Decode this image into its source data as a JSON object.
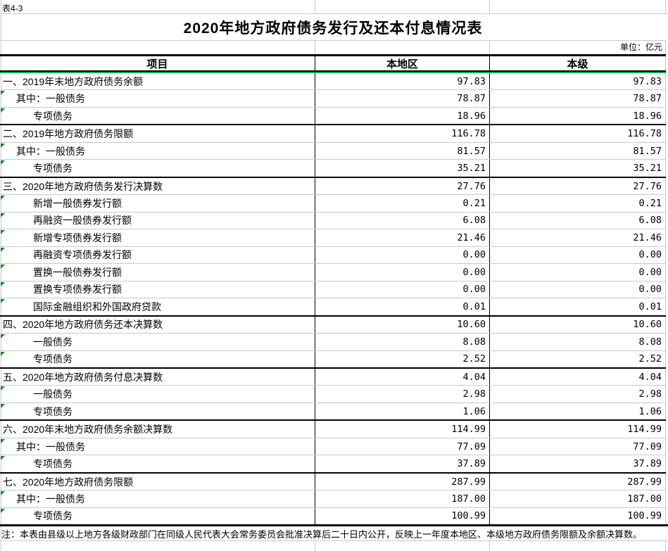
{
  "sheet": {
    "tag": "表4-3",
    "title": "2020年地方政府债务发行及还本付息情况表",
    "unit_label": "单位：亿元",
    "note": "注：本表由县级以上地方各级财政部门在同级人民代表大会常务委员会批准决算后二十日内公开，反映上一年度本地区、本级地方政府债务限额及余额决算数。"
  },
  "table": {
    "columns": [
      "项目",
      "本地区",
      "本级"
    ],
    "rows": [
      {
        "label": "一、2019年末地方政府债务余额",
        "indent": 0,
        "section": true,
        "flag": false,
        "values": [
          "97.83",
          "97.83"
        ]
      },
      {
        "label": "其中：一般债务",
        "indent": 1,
        "section": false,
        "flag": true,
        "values": [
          "78.87",
          "78.87"
        ]
      },
      {
        "label": "专项债务",
        "indent": 2,
        "section": false,
        "flag": true,
        "values": [
          "18.96",
          "18.96"
        ]
      },
      {
        "label": "二、2019年地方政府债务限额",
        "indent": 0,
        "section": true,
        "flag": false,
        "values": [
          "116.78",
          "116.78"
        ]
      },
      {
        "label": "其中：一般债务",
        "indent": 1,
        "section": false,
        "flag": true,
        "values": [
          "81.57",
          "81.57"
        ]
      },
      {
        "label": "专项债务",
        "indent": 2,
        "section": false,
        "flag": true,
        "values": [
          "35.21",
          "35.21"
        ]
      },
      {
        "label": "三、2020年地方政府债务发行决算数",
        "indent": 0,
        "section": true,
        "flag": false,
        "values": [
          "27.76",
          "27.76"
        ]
      },
      {
        "label": "新增一般债券发行额",
        "indent": 2,
        "section": false,
        "flag": true,
        "values": [
          "0.21",
          "0.21"
        ]
      },
      {
        "label": "再融资一般债券发行额",
        "indent": 2,
        "section": false,
        "flag": true,
        "values": [
          "6.08",
          "6.08"
        ]
      },
      {
        "label": "新增专项债券发行额",
        "indent": 2,
        "section": false,
        "flag": true,
        "values": [
          "21.46",
          "21.46"
        ]
      },
      {
        "label": "再融资专项债券发行额",
        "indent": 2,
        "section": false,
        "flag": true,
        "values": [
          "0.00",
          "0.00"
        ]
      },
      {
        "label": "置换一般债券发行额",
        "indent": 2,
        "section": false,
        "flag": true,
        "values": [
          "0.00",
          "0.00"
        ]
      },
      {
        "label": "置换专项债券发行额",
        "indent": 2,
        "section": false,
        "flag": true,
        "values": [
          "0.00",
          "0.00"
        ]
      },
      {
        "label": "国际金融组织和外国政府贷款",
        "indent": 2,
        "section": false,
        "flag": true,
        "values": [
          "0.01",
          "0.01"
        ]
      },
      {
        "label": "四、2020年地方政府债务还本决算数",
        "indent": 0,
        "section": true,
        "flag": false,
        "values": [
          "10.60",
          "10.60"
        ]
      },
      {
        "label": "一般债务",
        "indent": 2,
        "section": false,
        "flag": true,
        "values": [
          "8.08",
          "8.08"
        ]
      },
      {
        "label": "专项债务",
        "indent": 2,
        "section": false,
        "flag": true,
        "values": [
          "2.52",
          "2.52"
        ]
      },
      {
        "label": "五、2020年地方政府债务付息决算数",
        "indent": 0,
        "section": true,
        "flag": false,
        "values": [
          "4.04",
          "4.04"
        ]
      },
      {
        "label": "一般债务",
        "indent": 2,
        "section": false,
        "flag": true,
        "values": [
          "2.98",
          "2.98"
        ]
      },
      {
        "label": "专项债务",
        "indent": 2,
        "section": false,
        "flag": true,
        "values": [
          "1.06",
          "1.06"
        ]
      },
      {
        "label": "六、2020年末地方政府债务余额决算数",
        "indent": 0,
        "section": true,
        "flag": false,
        "values": [
          "114.99",
          "114.99"
        ]
      },
      {
        "label": "其中：一般债务",
        "indent": 1,
        "section": false,
        "flag": true,
        "values": [
          "77.09",
          "77.09"
        ]
      },
      {
        "label": "专项债务",
        "indent": 2,
        "section": false,
        "flag": true,
        "values": [
          "37.89",
          "37.89"
        ]
      },
      {
        "label": "七、2020年地方政府债务限额",
        "indent": 0,
        "section": true,
        "flag": false,
        "values": [
          "287.99",
          "287.99"
        ]
      },
      {
        "label": "其中：一般债务",
        "indent": 1,
        "section": false,
        "flag": true,
        "values": [
          "187.00",
          "187.00"
        ]
      },
      {
        "label": "专项债务",
        "indent": 2,
        "section": false,
        "flag": true,
        "values": [
          "100.99",
          "100.99"
        ]
      }
    ]
  },
  "colors": {
    "accent-green": "#00b050",
    "flag-green": "#217a21",
    "gridline": "#c3cad2"
  }
}
